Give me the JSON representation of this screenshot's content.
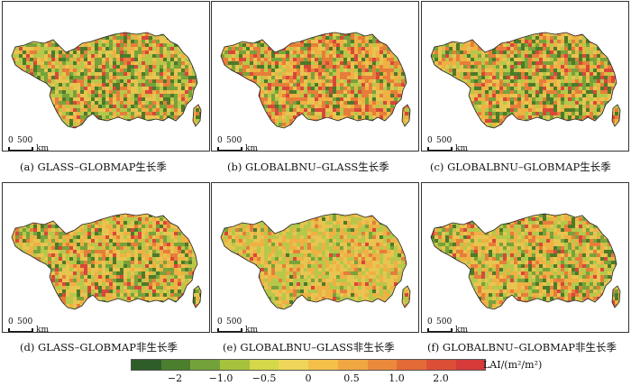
{
  "panels": [
    {
      "caption": "(a) GLASS–GLOBMAP生长季",
      "palette": [
        "#4d7a2a",
        "#78a23a",
        "#b6c84a",
        "#e8c450",
        "#efb044",
        "#e77d3a",
        "#d9473a"
      ],
      "weights": [
        12,
        18,
        20,
        18,
        14,
        12,
        6
      ]
    },
    {
      "caption": "(b) GLOBALBNU–GLASS生长季",
      "palette": [
        "#4d7a2a",
        "#78a23a",
        "#b6c84a",
        "#e8c450",
        "#efb044",
        "#e77d3a",
        "#d9473a"
      ],
      "weights": [
        8,
        10,
        14,
        16,
        18,
        22,
        12
      ]
    },
    {
      "caption": "(c) GLOBALBNU–GLOBMAP生长季",
      "palette": [
        "#4d7a2a",
        "#78a23a",
        "#b6c84a",
        "#e8c450",
        "#efb044",
        "#e77d3a",
        "#d9473a"
      ],
      "weights": [
        14,
        14,
        16,
        16,
        16,
        16,
        8
      ]
    },
    {
      "caption": "(d) GLASS–GLOBMAP非生长季",
      "palette": [
        "#4d7a2a",
        "#78a23a",
        "#b6c84a",
        "#e8c450",
        "#efb044",
        "#e77d3a",
        "#d9473a"
      ],
      "weights": [
        8,
        12,
        18,
        24,
        22,
        10,
        6
      ]
    },
    {
      "caption": "(e) GLOBALBNU–GLASS非生长季",
      "palette": [
        "#4d7a2a",
        "#78a23a",
        "#b6c84a",
        "#e8c450",
        "#efb044",
        "#e77d3a",
        "#d9473a"
      ],
      "weights": [
        2,
        6,
        26,
        34,
        24,
        6,
        2
      ]
    },
    {
      "caption": "(f) GLOBALBNU–GLOBMAP非生长季",
      "palette": [
        "#4d7a2a",
        "#78a23a",
        "#b6c84a",
        "#e8c450",
        "#efb044",
        "#e77d3a",
        "#d9473a"
      ],
      "weights": [
        8,
        12,
        20,
        22,
        20,
        12,
        6
      ]
    }
  ],
  "scalebar": {
    "zero": "0",
    "length": "500",
    "unit": "km"
  },
  "legend": {
    "colors": [
      "#2f5d2a",
      "#4b7f2e",
      "#74a23a",
      "#a6c23e",
      "#d4d84a",
      "#eed65a",
      "#f4c04a",
      "#f0a742",
      "#ec8a3c",
      "#e46a38",
      "#dd4e37",
      "#d63b39"
    ],
    "ticks": [
      "−2",
      "−1.0",
      "−0.5",
      "0",
      "0.5",
      "1.0",
      "2.0"
    ],
    "unit": "LAI/(m²/m²)"
  }
}
